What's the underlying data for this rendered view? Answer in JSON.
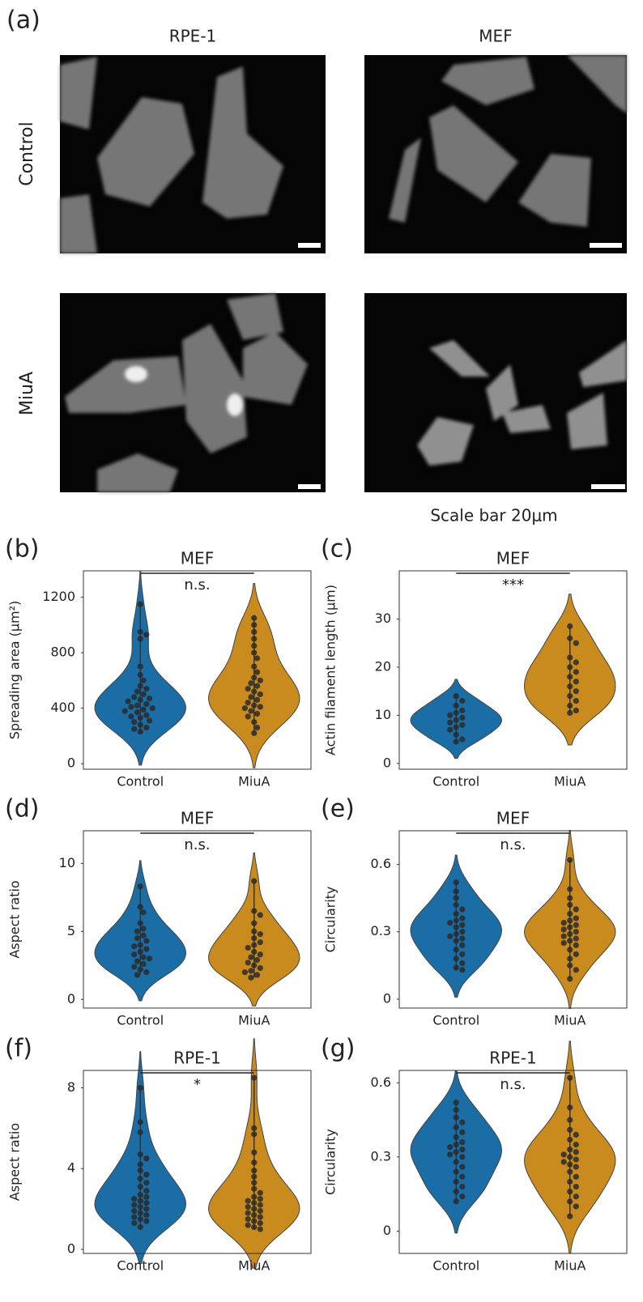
{
  "figure": {
    "panel": "(a)",
    "columns": [
      "RPE-1",
      "MEF"
    ],
    "rows": [
      "Control",
      "MiuA"
    ],
    "scale_note": "Scale bar 20μm"
  },
  "chart_data": [
    {
      "type": "violin",
      "panel": "(b)",
      "title": "MEF",
      "ylabel": "Spreading area (μm²)",
      "categories": [
        "Control",
        "MiuA"
      ],
      "significance": "n.s.",
      "series": [
        {
          "color": "#1b6da5",
          "values": [
            1150,
            950,
            930,
            900,
            700,
            640,
            600,
            560,
            540,
            520,
            500,
            480,
            470,
            460,
            450,
            430,
            420,
            410,
            400,
            390,
            380,
            370,
            350,
            340,
            330,
            310,
            300,
            280,
            260,
            250,
            230
          ]
        },
        {
          "color": "#c98a1e",
          "values": [
            1050,
            1000,
            950,
            900,
            850,
            800,
            760,
            700,
            660,
            620,
            600,
            580,
            560,
            540,
            520,
            500,
            480,
            460,
            440,
            420,
            410,
            400,
            380,
            360,
            340,
            300,
            260,
            220
          ]
        }
      ],
      "ylim": [
        -40,
        1390
      ],
      "yticks": [
        0,
        400,
        800,
        1200
      ]
    },
    {
      "type": "violin",
      "panel": "(c)",
      "title": "MEF",
      "ylabel": "Actin filament length (μm)",
      "categories": [
        "Control",
        "MiuA"
      ],
      "significance": "***",
      "series": [
        {
          "color": "#1b6da5",
          "values": [
            14,
            13,
            12,
            11,
            10.5,
            10,
            9.5,
            9,
            8.5,
            8,
            7.5,
            7,
            6,
            5,
            4.5
          ]
        },
        {
          "color": "#c98a1e",
          "values": [
            28.5,
            26,
            25,
            22,
            21,
            20,
            19,
            18,
            17,
            16,
            15,
            14,
            13,
            12,
            11,
            10.5
          ]
        }
      ],
      "ylim": [
        -1.2,
        40
      ],
      "yticks": [
        0,
        10,
        20,
        30
      ]
    },
    {
      "type": "violin",
      "panel": "(d)",
      "title": "MEF",
      "ylabel": "Aspect ratio",
      "categories": [
        "Control",
        "MiuA"
      ],
      "significance": "n.s.",
      "series": [
        {
          "color": "#1b6da5",
          "values": [
            8.3,
            6.8,
            6.4,
            5.6,
            5.2,
            5,
            4.7,
            4.5,
            4.3,
            4,
            3.9,
            3.7,
            3.5,
            3.3,
            3.1,
            3,
            2.8,
            2.6,
            2.4,
            2.2,
            2,
            1.8
          ]
        },
        {
          "color": "#c98a1e",
          "values": [
            8.7,
            6.5,
            6.2,
            5.6,
            5,
            4.8,
            4.5,
            4.2,
            4,
            3.8,
            3.5,
            3.3,
            3.1,
            2.9,
            2.7,
            2.5,
            2.3,
            2.1,
            2,
            1.8,
            1.6
          ]
        }
      ],
      "ylim": [
        -0.64,
        12.4
      ],
      "yticks": [
        0,
        5,
        10
      ]
    },
    {
      "type": "violin",
      "panel": "(e)",
      "title": "MEF",
      "ylabel": "Circularity",
      "categories": [
        "Control",
        "MiuA"
      ],
      "significance": "n.s.",
      "series": [
        {
          "color": "#1b6da5",
          "values": [
            0.52,
            0.48,
            0.45,
            0.42,
            0.4,
            0.38,
            0.36,
            0.35,
            0.34,
            0.33,
            0.32,
            0.3,
            0.29,
            0.28,
            0.27,
            0.26,
            0.24,
            0.22,
            0.2,
            0.18,
            0.16,
            0.14,
            0.13
          ]
        },
        {
          "color": "#c98a1e",
          "values": [
            0.62,
            0.49,
            0.45,
            0.42,
            0.4,
            0.38,
            0.36,
            0.35,
            0.34,
            0.33,
            0.32,
            0.31,
            0.3,
            0.29,
            0.28,
            0.27,
            0.26,
            0.25,
            0.24,
            0.22,
            0.2,
            0.18,
            0.15,
            0.13,
            0.09
          ]
        }
      ],
      "ylim": [
        -0.04,
        0.75
      ],
      "yticks": [
        0,
        0.3,
        0.6
      ]
    },
    {
      "type": "violin",
      "panel": "(f)",
      "title": "RPE-1",
      "ylabel": "Aspect ratio",
      "categories": [
        "Control",
        "MiuA"
      ],
      "significance": "*",
      "series": [
        {
          "color": "#1b6da5",
          "values": [
            8,
            6.3,
            5.8,
            4.7,
            4.5,
            4.2,
            3.9,
            3.7,
            3.5,
            3.3,
            3.1,
            2.9,
            2.7,
            2.6,
            2.5,
            2.4,
            2.3,
            2.2,
            2.1,
            2,
            1.9,
            1.8,
            1.7,
            1.6,
            1.5,
            1.4,
            1.3,
            1.1
          ]
        },
        {
          "color": "#c98a1e",
          "values": [
            8.5,
            6,
            5.7,
            4.8,
            4.3,
            3.9,
            3.6,
            3.3,
            3,
            2.8,
            2.6,
            2.5,
            2.4,
            2.3,
            2.2,
            2.1,
            2,
            1.9,
            1.8,
            1.7,
            1.6,
            1.5,
            1.4,
            1.3,
            1.2,
            1.1,
            1
          ]
        }
      ],
      "ylim": [
        -0.2,
        8.86
      ],
      "yticks": [
        0,
        4,
        8
      ]
    },
    {
      "type": "violin",
      "panel": "(g)",
      "title": "RPE-1",
      "ylabel": "Circularity",
      "categories": [
        "Control",
        "MiuA"
      ],
      "significance": "n.s.",
      "series": [
        {
          "color": "#1b6da5",
          "values": [
            0.52,
            0.49,
            0.46,
            0.44,
            0.42,
            0.4,
            0.38,
            0.36,
            0.35,
            0.34,
            0.33,
            0.32,
            0.31,
            0.3,
            0.28,
            0.26,
            0.24,
            0.22,
            0.2,
            0.18,
            0.16,
            0.14,
            0.12
          ]
        },
        {
          "color": "#c98a1e",
          "values": [
            0.62,
            0.5,
            0.45,
            0.41,
            0.39,
            0.37,
            0.35,
            0.33,
            0.32,
            0.31,
            0.3,
            0.29,
            0.28,
            0.27,
            0.26,
            0.24,
            0.22,
            0.2,
            0.18,
            0.16,
            0.14,
            0.12,
            0.1,
            0.06
          ]
        }
      ],
      "ylim": [
        -0.09,
        0.65
      ],
      "yticks": [
        0,
        0.3,
        0.6
      ]
    }
  ]
}
